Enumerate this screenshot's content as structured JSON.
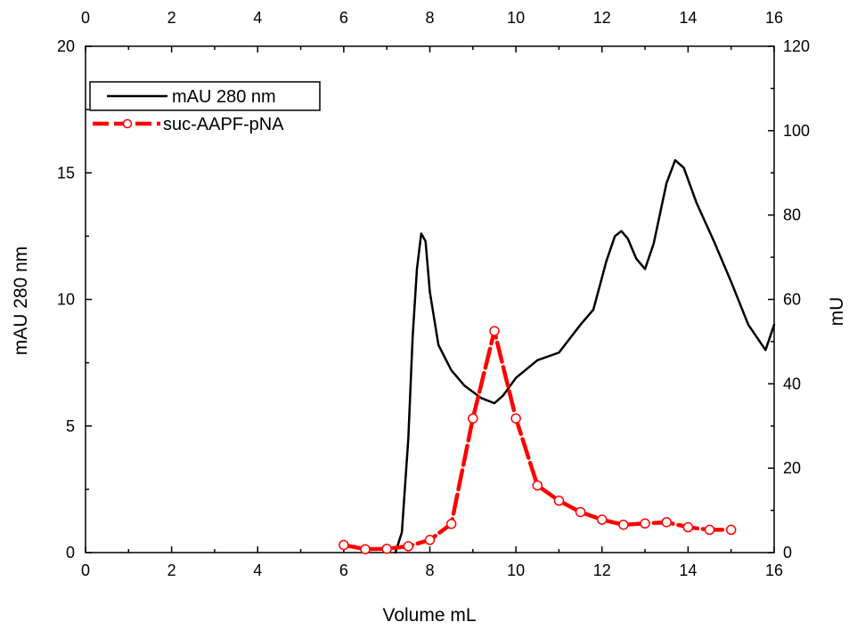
{
  "chart_data": {
    "type": "line",
    "xlabel": "Volume mL",
    "ylabel_left": "mAU 280 nm",
    "ylabel_right": "mU",
    "xlim": [
      0,
      16
    ],
    "ylim_left": [
      0,
      20
    ],
    "ylim_right": [
      0,
      120
    ],
    "x_ticks": [
      0,
      2,
      4,
      6,
      8,
      10,
      12,
      14,
      16
    ],
    "y_left_ticks": [
      0,
      5,
      10,
      15,
      20
    ],
    "y_right_ticks": [
      0,
      20,
      40,
      60,
      80,
      100,
      120
    ],
    "grid": false,
    "legend_position": "top-left",
    "series": [
      {
        "name": "mAU 280 nm",
        "axis": "left",
        "color": "#000000",
        "style": "solid",
        "x": [
          7.2,
          7.35,
          7.5,
          7.6,
          7.7,
          7.8,
          7.9,
          8.0,
          8.2,
          8.5,
          8.8,
          9.2,
          9.5,
          9.7,
          10.0,
          10.5,
          11.0,
          11.5,
          11.8,
          12.1,
          12.3,
          12.45,
          12.6,
          12.8,
          13.0,
          13.2,
          13.5,
          13.7,
          13.9,
          14.2,
          14.6,
          15.0,
          15.4,
          15.8,
          16.0
        ],
        "y": [
          0.0,
          0.8,
          4.5,
          8.5,
          11.2,
          12.6,
          12.3,
          10.3,
          8.2,
          7.2,
          6.6,
          6.1,
          5.9,
          6.2,
          6.9,
          7.6,
          7.9,
          9.0,
          9.6,
          11.5,
          12.5,
          12.7,
          12.4,
          11.6,
          11.2,
          12.2,
          14.6,
          15.5,
          15.2,
          13.8,
          12.3,
          10.7,
          9.0,
          8.0,
          9.0
        ]
      },
      {
        "name": "suc-AAPF-pNA",
        "axis": "right",
        "color": "#ff0000",
        "style": "dashed",
        "marker": "open-circle",
        "x": [
          6.0,
          6.5,
          7.0,
          7.5,
          8.0,
          8.5,
          9.0,
          9.5,
          10.0,
          10.5,
          11.0,
          11.5,
          12.0,
          12.5,
          13.0,
          13.5,
          14.0,
          14.5,
          15.0
        ],
        "y": [
          1.8,
          0.8,
          0.9,
          1.5,
          3.0,
          6.8,
          31.8,
          52.5,
          31.8,
          15.9,
          12.3,
          9.6,
          7.8,
          6.6,
          6.9,
          7.2,
          6.0,
          5.4,
          5.4
        ]
      }
    ]
  }
}
